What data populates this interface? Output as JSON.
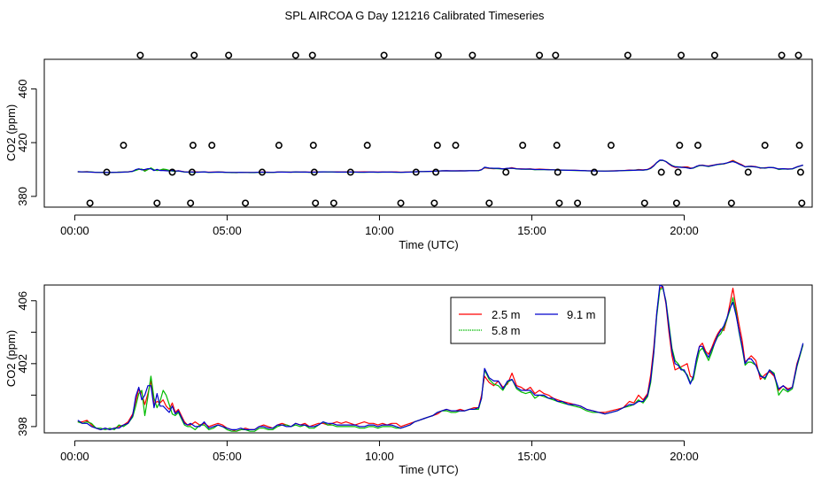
{
  "title": "SPL AIRCOA G  Day 121216  Calibrated Timeseries",
  "chart_data": [
    {
      "type": "scatter+line",
      "xlabel": "Time (UTC)",
      "ylabel": "CO2 (ppm)",
      "xlim": [
        -1.0,
        24.2
      ],
      "ylim": [
        372,
        482
      ],
      "x_ticks": [
        0,
        5,
        10,
        15,
        20
      ],
      "x_tick_labels": [
        "00:00",
        "05:00",
        "10:00",
        "15:00",
        "20:00"
      ],
      "y_ticks": [
        380,
        420,
        460
      ],
      "y_tick_labels": [
        "380",
        "420",
        "460"
      ],
      "calibration_points": [
        {
          "x": 0.5,
          "y": 375
        },
        {
          "x": 1.05,
          "y": 398
        },
        {
          "x": 1.6,
          "y": 418
        },
        {
          "x": 2.15,
          "y": 485
        },
        {
          "x": 2.7,
          "y": 375
        },
        {
          "x": 3.2,
          "y": 398
        },
        {
          "x": 3.8,
          "y": 375
        },
        {
          "x": 3.85,
          "y": 398
        },
        {
          "x": 3.88,
          "y": 418
        },
        {
          "x": 3.92,
          "y": 485
        },
        {
          "x": 4.5,
          "y": 418
        },
        {
          "x": 5.05,
          "y": 485
        },
        {
          "x": 5.6,
          "y": 375
        },
        {
          "x": 6.15,
          "y": 398
        },
        {
          "x": 6.7,
          "y": 418
        },
        {
          "x": 7.25,
          "y": 485
        },
        {
          "x": 7.8,
          "y": 485
        },
        {
          "x": 7.83,
          "y": 418
        },
        {
          "x": 7.86,
          "y": 398
        },
        {
          "x": 7.9,
          "y": 375
        },
        {
          "x": 8.5,
          "y": 375
        },
        {
          "x": 9.05,
          "y": 398
        },
        {
          "x": 9.6,
          "y": 418
        },
        {
          "x": 10.15,
          "y": 485
        },
        {
          "x": 10.7,
          "y": 375
        },
        {
          "x": 11.2,
          "y": 398
        },
        {
          "x": 11.8,
          "y": 375
        },
        {
          "x": 11.85,
          "y": 398
        },
        {
          "x": 11.9,
          "y": 418
        },
        {
          "x": 11.93,
          "y": 485
        },
        {
          "x": 12.5,
          "y": 418
        },
        {
          "x": 13.05,
          "y": 485
        },
        {
          "x": 13.6,
          "y": 375
        },
        {
          "x": 14.15,
          "y": 398
        },
        {
          "x": 14.7,
          "y": 418
        },
        {
          "x": 15.25,
          "y": 485
        },
        {
          "x": 15.78,
          "y": 485
        },
        {
          "x": 15.82,
          "y": 418
        },
        {
          "x": 15.85,
          "y": 398
        },
        {
          "x": 15.9,
          "y": 375
        },
        {
          "x": 16.5,
          "y": 375
        },
        {
          "x": 17.05,
          "y": 398
        },
        {
          "x": 17.6,
          "y": 418
        },
        {
          "x": 18.15,
          "y": 485
        },
        {
          "x": 18.7,
          "y": 375
        },
        {
          "x": 19.25,
          "y": 398
        },
        {
          "x": 19.75,
          "y": 375
        },
        {
          "x": 19.8,
          "y": 398
        },
        {
          "x": 19.85,
          "y": 418
        },
        {
          "x": 19.9,
          "y": 485
        },
        {
          "x": 20.45,
          "y": 418
        },
        {
          "x": 21.0,
          "y": 485
        },
        {
          "x": 21.55,
          "y": 375
        },
        {
          "x": 22.1,
          "y": 398
        },
        {
          "x": 22.65,
          "y": 418
        },
        {
          "x": 23.2,
          "y": 485
        },
        {
          "x": 23.75,
          "y": 485
        },
        {
          "x": 23.78,
          "y": 418
        },
        {
          "x": 23.82,
          "y": 398
        },
        {
          "x": 23.86,
          "y": 375
        }
      ],
      "series_note": "overlaid 2.5 m / 5.8 m / 9.1 m timeseries (same data as lower panel)"
    },
    {
      "type": "line",
      "xlabel": "Time (UTC)",
      "ylabel": "CO2 (ppm)",
      "xlim": [
        -1.0,
        24.2
      ],
      "ylim": [
        397.6,
        407.0
      ],
      "x_ticks": [
        0,
        5,
        10,
        15,
        20
      ],
      "x_tick_labels": [
        "00:00",
        "05:00",
        "10:00",
        "15:00",
        "20:00"
      ],
      "y_ticks": [
        398,
        400,
        402,
        404,
        406
      ],
      "y_tick_labels": [
        "398",
        "",
        "402",
        "",
        "406"
      ],
      "legend": {
        "position": "top-right",
        "entries": [
          "2.5 m",
          "9.1 m",
          "5.8 m"
        ]
      },
      "x": [
        0.1,
        0.25,
        0.4,
        0.55,
        0.7,
        0.85,
        1.0,
        1.15,
        1.3,
        1.45,
        1.6,
        1.75,
        1.9,
        2.0,
        2.1,
        2.2,
        2.3,
        2.4,
        2.5,
        2.6,
        2.7,
        2.8,
        2.9,
        3.0,
        3.1,
        3.2,
        3.3,
        3.4,
        3.5,
        3.6,
        3.7,
        3.8,
        3.95,
        4.1,
        4.25,
        4.4,
        4.55,
        4.7,
        4.85,
        5.0,
        5.15,
        5.3,
        5.45,
        5.6,
        5.75,
        5.9,
        6.05,
        6.2,
        6.35,
        6.5,
        6.65,
        6.8,
        6.95,
        7.1,
        7.25,
        7.4,
        7.55,
        7.7,
        7.85,
        8.0,
        8.15,
        8.3,
        8.45,
        8.6,
        8.75,
        8.9,
        9.05,
        9.2,
        9.35,
        9.5,
        9.65,
        9.8,
        9.95,
        10.1,
        10.25,
        10.4,
        10.55,
        10.7,
        10.85,
        11.0,
        11.15,
        11.3,
        11.45,
        11.6,
        11.75,
        11.9,
        12.05,
        12.2,
        12.35,
        12.5,
        12.65,
        12.8,
        12.95,
        13.1,
        13.25,
        13.35,
        13.45,
        13.6,
        13.75,
        13.9,
        14.05,
        14.2,
        14.35,
        14.5,
        14.65,
        14.8,
        14.95,
        15.1,
        15.25,
        15.4,
        15.55,
        15.7,
        15.85,
        16.0,
        16.2,
        16.4,
        16.6,
        16.8,
        17.0,
        17.2,
        17.4,
        17.6,
        17.8,
        18.0,
        18.2,
        18.35,
        18.5,
        18.65,
        18.8,
        18.9,
        19.0,
        19.1,
        19.2,
        19.3,
        19.4,
        19.5,
        19.6,
        19.7,
        19.8,
        19.9,
        20.0,
        20.1,
        20.2,
        20.3,
        20.4,
        20.5,
        20.6,
        20.7,
        20.8,
        20.9,
        21.0,
        21.1,
        21.2,
        21.3,
        21.4,
        21.5,
        21.6,
        21.7,
        21.8,
        21.9,
        22.0,
        22.1,
        22.2,
        22.35,
        22.5,
        22.65,
        22.8,
        22.95,
        23.1,
        23.25,
        23.4,
        23.55,
        23.7,
        23.9
      ],
      "series": [
        {
          "name": "2.5 m",
          "color": "#ff0000",
          "values": [
            398.3,
            398.3,
            398.4,
            398.1,
            397.9,
            397.8,
            397.9,
            397.8,
            397.9,
            398.0,
            398.1,
            398.3,
            398.8,
            399.6,
            400.4,
            400.1,
            399.4,
            400.1,
            400.9,
            399.4,
            399.6,
            399.5,
            399.7,
            399.3,
            399.1,
            399.5,
            398.9,
            399.1,
            398.7,
            398.3,
            398.1,
            398.1,
            398.3,
            398.1,
            398.2,
            398.0,
            398.1,
            398.2,
            398.1,
            397.9,
            397.8,
            397.7,
            397.8,
            397.9,
            397.8,
            397.8,
            398.0,
            398.1,
            398.0,
            397.9,
            398.1,
            398.2,
            398.1,
            398.0,
            398.2,
            398.1,
            398.2,
            398.0,
            398.1,
            398.2,
            398.2,
            398.1,
            398.2,
            398.3,
            398.2,
            398.3,
            398.2,
            398.1,
            398.2,
            398.3,
            398.2,
            398.2,
            398.1,
            398.2,
            398.1,
            398.2,
            398.2,
            398.0,
            398.1,
            398.2,
            398.3,
            398.4,
            398.5,
            398.6,
            398.7,
            398.8,
            399.0,
            399.1,
            399.0,
            399.0,
            399.1,
            399.0,
            399.1,
            399.2,
            399.2,
            400.0,
            401.2,
            400.8,
            400.6,
            400.9,
            400.5,
            400.7,
            401.4,
            400.6,
            400.5,
            400.3,
            400.5,
            400.1,
            400.3,
            400.1,
            400.0,
            399.8,
            399.7,
            399.6,
            399.5,
            399.4,
            399.3,
            399.1,
            399.0,
            398.9,
            398.9,
            399.0,
            399.1,
            399.2,
            399.6,
            399.5,
            400.0,
            399.7,
            400.1,
            401.3,
            403.0,
            405.2,
            406.8,
            406.9,
            405.8,
            404.0,
            402.5,
            401.6,
            401.7,
            401.8,
            401.9,
            402.0,
            401.2,
            401.1,
            402.3,
            403.1,
            403.3,
            402.8,
            402.6,
            403.0,
            403.5,
            403.9,
            404.2,
            404.1,
            404.8,
            405.8,
            406.8,
            405.6,
            404.5,
            403.5,
            402.1,
            402.3,
            402.5,
            402.2,
            401.0,
            401.3,
            401.5,
            401.2,
            400.3,
            400.6,
            400.4,
            400.5,
            402.0,
            403.2
          ]
        },
        {
          "name": "5.8 m",
          "color": "#00bb00",
          "values": [
            398.3,
            398.2,
            398.3,
            398.2,
            397.9,
            397.9,
            397.8,
            397.9,
            397.8,
            398.1,
            398.0,
            398.2,
            398.6,
            399.3,
            400.1,
            400.3,
            398.7,
            399.9,
            401.2,
            399.8,
            399.2,
            399.6,
            400.3,
            400.0,
            399.4,
            398.8,
            398.7,
            398.9,
            398.5,
            398.1,
            398.0,
            398.0,
            397.8,
            398.1,
            398.1,
            397.8,
            397.9,
            398.1,
            398.0,
            397.8,
            397.7,
            397.7,
            397.8,
            397.8,
            397.7,
            397.7,
            397.9,
            397.9,
            397.8,
            397.8,
            398.0,
            398.1,
            398.1,
            398.0,
            398.1,
            398.0,
            398.1,
            397.9,
            397.9,
            398.1,
            398.3,
            398.1,
            398.1,
            398.0,
            398.0,
            398.0,
            398.0,
            398.0,
            397.9,
            397.9,
            398.0,
            398.0,
            397.9,
            398.0,
            398.0,
            398.0,
            397.9,
            397.9,
            398.0,
            398.1,
            398.3,
            398.4,
            398.5,
            398.6,
            398.7,
            398.9,
            399.0,
            399.0,
            398.9,
            398.9,
            399.0,
            399.0,
            399.1,
            399.1,
            399.1,
            399.8,
            401.6,
            401.0,
            400.7,
            400.6,
            400.3,
            400.8,
            401.0,
            400.4,
            400.2,
            400.1,
            400.2,
            399.8,
            400.0,
            399.9,
            399.8,
            399.7,
            399.6,
            399.5,
            399.4,
            399.3,
            399.2,
            399.0,
            398.9,
            398.9,
            398.8,
            398.9,
            399.0,
            399.2,
            399.3,
            399.4,
            399.7,
            399.5,
            399.9,
            400.8,
            402.6,
            405.0,
            406.7,
            406.8,
            406.0,
            404.5,
            403.0,
            402.2,
            402.0,
            401.7,
            401.5,
            401.3,
            400.8,
            401.0,
            402.0,
            402.8,
            403.0,
            402.6,
            402.2,
            402.7,
            403.3,
            403.7,
            403.9,
            404.3,
            404.8,
            405.4,
            406.2,
            405.3,
            404.0,
            403.0,
            401.9,
            402.1,
            402.1,
            401.9,
            401.3,
            401.0,
            401.6,
            401.4,
            400.0,
            400.4,
            400.2,
            400.4,
            401.8,
            403.2
          ]
        },
        {
          "name": "9.1 m",
          "color": "#0000cc",
          "values": [
            398.4,
            398.2,
            398.2,
            398.0,
            397.9,
            397.8,
            397.9,
            397.8,
            397.9,
            397.9,
            398.1,
            398.2,
            398.7,
            399.9,
            400.5,
            399.7,
            400.0,
            400.6,
            400.6,
            399.2,
            400.1,
            399.3,
            399.3,
            399.1,
            398.9,
            399.3,
            398.8,
            399.0,
            398.6,
            398.2,
            398.1,
            398.2,
            398.0,
            398.0,
            398.3,
            397.9,
            398.0,
            398.1,
            398.0,
            397.9,
            397.8,
            397.8,
            397.9,
            397.8,
            397.8,
            397.8,
            398.0,
            398.0,
            397.9,
            397.9,
            398.1,
            398.1,
            398.0,
            398.0,
            398.2,
            398.1,
            398.1,
            398.0,
            398.0,
            398.1,
            398.3,
            398.2,
            398.2,
            398.1,
            398.1,
            398.1,
            398.1,
            398.1,
            398.0,
            398.0,
            398.1,
            398.1,
            398.0,
            398.1,
            398.1,
            398.1,
            398.0,
            397.9,
            398.0,
            398.1,
            398.3,
            398.4,
            398.5,
            398.6,
            398.7,
            398.9,
            399.0,
            399.1,
            399.0,
            399.0,
            399.0,
            399.0,
            399.1,
            399.1,
            399.2,
            399.8,
            401.7,
            401.1,
            400.9,
            400.9,
            400.4,
            400.9,
            401.0,
            400.5,
            400.3,
            400.3,
            400.3,
            400.0,
            400.0,
            400.0,
            399.8,
            399.8,
            399.6,
            399.6,
            399.4,
            399.4,
            399.3,
            399.1,
            399.0,
            398.9,
            398.8,
            398.9,
            399.0,
            399.2,
            399.4,
            399.4,
            399.6,
            399.6,
            400.0,
            401.0,
            402.7,
            405.2,
            407.0,
            406.9,
            405.9,
            404.3,
            402.8,
            402.0,
            401.9,
            401.6,
            401.6,
            401.2,
            400.7,
            401.2,
            402.3,
            403.1,
            403.1,
            402.7,
            402.4,
            402.9,
            403.3,
            403.8,
            404.1,
            404.4,
            404.9,
            405.5,
            405.9,
            405.1,
            404.1,
            403.1,
            402.0,
            402.3,
            402.3,
            401.9,
            401.2,
            401.1,
            401.6,
            401.3,
            400.4,
            400.6,
            400.3,
            400.5,
            401.9,
            403.3
          ]
        }
      ]
    }
  ]
}
